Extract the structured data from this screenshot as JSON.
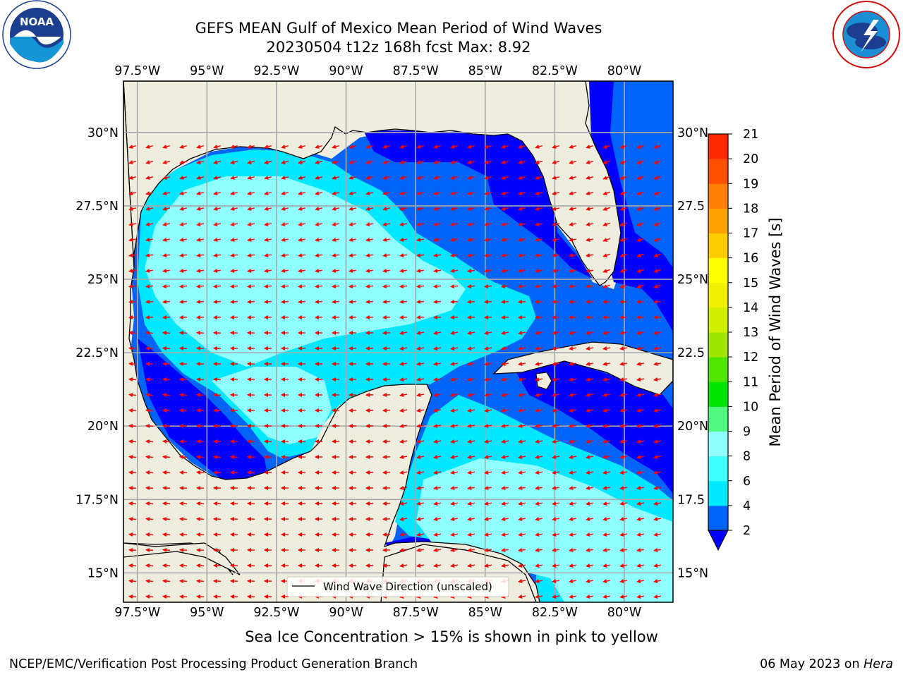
{
  "title": {
    "line1": "GEFS MEAN Gulf of Mexico Mean Period of Wind Waves",
    "line2": "20230504 t12z 168h fcst   Max: 8.92"
  },
  "map": {
    "lon_ticks": [
      "97.5°W",
      "95°W",
      "92.5°W",
      "90°W",
      "87.5°W",
      "85°W",
      "82.5°W",
      "80°W"
    ],
    "lon_values": [
      -97.5,
      -95,
      -92.5,
      -90,
      -87.5,
      -85,
      -82.5,
      -80
    ],
    "lat_ticks_left": [
      "30°N",
      "27.5°N",
      "25°N",
      "22.5°N",
      "20°N",
      "17.5°N",
      "15°N"
    ],
    "lat_ticks_right": [
      "30°N",
      "27.5",
      "25°N",
      "22.5",
      "20°N",
      "17.5",
      "15°N"
    ],
    "lat_values": [
      30,
      27.5,
      25,
      22.5,
      20,
      17.5,
      15
    ],
    "extent": {
      "lon_min": -98,
      "lon_max": -78.25,
      "lat_min": 14,
      "lat_max": 31.75
    },
    "legend_label": "Wind Wave Direction (unscaled)",
    "arrow_color": "#ff0000",
    "land_color": "#efedde",
    "grid": true
  },
  "colorbar": {
    "label": "Mean Period of Wind Waves [s]",
    "ticks": [
      "2",
      "4",
      "6",
      "8",
      "9",
      "10",
      "11",
      "12",
      "13",
      "14",
      "15",
      "16",
      "17",
      "18",
      "19",
      "20",
      "21"
    ],
    "colors": [
      "#0064f8",
      "#00e8ff",
      "#40ffff",
      "#90ffff",
      "#50fa80",
      "#00e600",
      "#50e600",
      "#a0e600",
      "#d0f000",
      "#f0f000",
      "#ffff00",
      "#ffcc00",
      "#ffa000",
      "#ff8000",
      "#ff5000",
      "#ff2800"
    ],
    "under_color": "#0000ff"
  },
  "caption": "Sea Ice Concentration > 15% is shown in pink to yellow",
  "footer": {
    "left": "NCEP/EMC/Verification Post Processing Product Generation Branch",
    "right_date": "06 May 2023 on ",
    "right_host": "Hera"
  },
  "logos": {
    "left": "noara-logo",
    "right": "nws-logo"
  }
}
